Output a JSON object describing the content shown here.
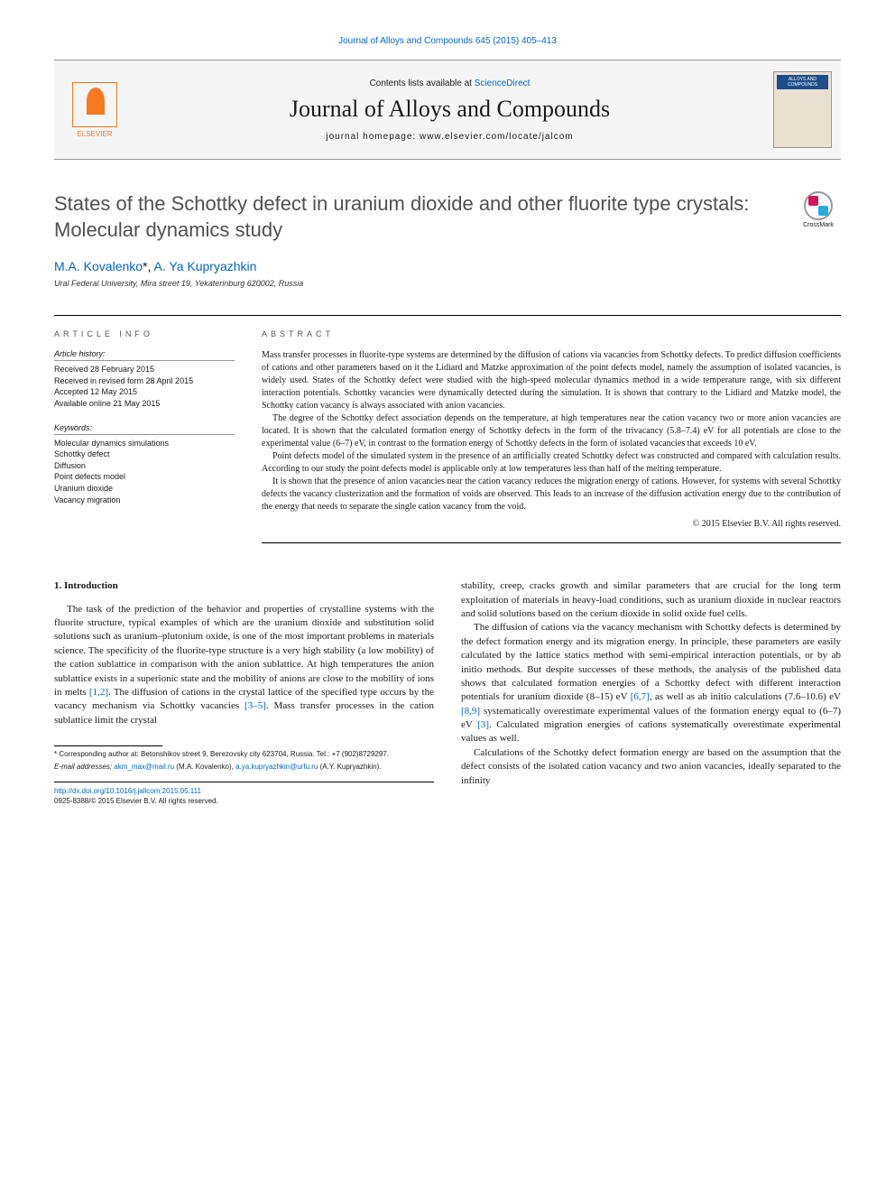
{
  "citation": "Journal of Alloys and Compounds 645 (2015) 405–413",
  "header": {
    "contents_prefix": "Contents lists available at ",
    "contents_link": "ScienceDirect",
    "journal_name": "Journal of Alloys and Compounds",
    "homepage": "journal homepage: www.elsevier.com/locate/jalcom",
    "elsevier_label": "ELSEVIER",
    "cover_text": "ALLOYS AND COMPOUNDS"
  },
  "crossmark_label": "CrossMark",
  "title": "States of the Schottky defect in uranium dioxide and other fluorite type crystals: Molecular dynamics study",
  "authors": {
    "a1_name": "M.A. Kovalenko",
    "a1_mark": "*",
    "sep": ", ",
    "a2_name": "A. Ya Kupryazhkin"
  },
  "affiliation": "Ural Federal University, Mira street 19, Yekaterinburg 620002, Russia",
  "info": {
    "heading": "ARTICLE INFO",
    "history_head": "Article history:",
    "history": "Received 28 February 2015\nReceived in revised form 28 April 2015\nAccepted 12 May 2015\nAvailable online 21 May 2015",
    "keywords_head": "Keywords:",
    "keywords": "Molecular dynamics simulations\nSchottky defect\nDiffusion\nPoint defects model\nUranium dioxide\nVacancy migration"
  },
  "abstract": {
    "heading": "ABSTRACT",
    "p1": "Mass transfer processes in fluorite-type systems are determined by the diffusion of cations via vacancies from Schottky defects. To predict diffusion coefficients of cations and other parameters based on it the Lidiard and Matzke approximation of the point defects model, namely the assumption of isolated vacancies, is widely used. States of the Schottky defect were studied with the high-speed molecular dynamics method in a wide temperature range, with six different interaction potentials. Schottky vacancies were dynamically detected during the simulation. It is shown that contrary to the Lidiard and Matzke model, the Schottky cation vacancy is always associated with anion vacancies.",
    "p2": "The degree of the Schottky defect association depends on the temperature, at high temperatures near the cation vacancy two or more anion vacancies are located. It is shown that the calculated formation energy of Schottky defects in the form of the trivacancy (5.8–7.4) eV for all potentials are close to the experimental value (6–7) eV, in contrast to the formation energy of Schottky defects in the form of isolated vacancies that exceeds 10 eV.",
    "p3": "Point defects model of the simulated system in the presence of an artificially created Schottky defect was constructed and compared with calculation results. According to our study the point defects model is applicable only at low temperatures less than half of the melting temperature.",
    "p4": "It is shown that the presence of anion vacancies near the cation vacancy reduces the migration energy of cations. However, for systems with several Schottky defects the vacancy clusterization and the formation of voids are observed. This leads to an increase of the diffusion activation energy due to the contribution of the energy that needs to separate the single cation vacancy from the void.",
    "copyright": "© 2015 Elsevier B.V. All rights reserved."
  },
  "body": {
    "section1_heading": "1. Introduction",
    "col1_p1a": "The task of the prediction of the behavior and properties of crystalline systems with the fluorite structure, typical examples of which are the uranium dioxide and substitution solid solutions such as uranium–plutonium oxide, is one of the most important problems in materials science. The specificity of the fluorite-type structure is a very high stability (a low mobility) of the cation sublattice in comparison with the anion sublattice. At high temperatures the anion sublattice exists in a superionic state and the mobility of anions are close to the mobility of ions in melts ",
    "ref12": "[1,2]",
    "col1_p1b": ". The diffusion of cations in the crystal lattice of the specified type occurs by the vacancy mechanism via Schottky vacancies ",
    "ref35": "[3–5]",
    "col1_p1c": ". Mass transfer processes in the cation sublattice limit the crystal",
    "col2_p1": "stability, creep, cracks growth and similar parameters that are crucial for the long term exploitation of materials in heavy-load conditions, such as uranium dioxide in nuclear reactors and solid solutions based on the cerium dioxide in solid oxide fuel cells.",
    "col2_p2a": "The diffusion of cations via the vacancy mechanism with Schottky defects is determined by the defect formation energy and its migration energy. In principle, these parameters are easily calculated by the lattice statics method with semi-empirical interaction potentials, or by ab initio methods. But despite successes of these methods, the analysis of the published data shows that calculated formation energies of a Schottky defect with different interaction potentials for uranium dioxide (8–15) eV ",
    "ref67": "[6,7]",
    "col2_p2b": ", as well as ab initio calculations (7.6–10.6) eV ",
    "ref89": "[8,9]",
    "col2_p2c": " systematically overestimate experimental values of the formation energy equal to (6–7) eV ",
    "ref3": "[3]",
    "col2_p2d": ". Calculated migration energies of cations systematically overestimate experimental values as well.",
    "col2_p3": "Calculations of the Schottky defect formation energy are based on the assumption that the defect consists of the isolated cation vacancy and two anion vacancies, ideally separated to the infinity"
  },
  "footnote": {
    "corr": "* Corresponding author at: Betonshikov street 9, Berezovsky city 623704, Russia. Tel.: +7 (902)8729297.",
    "email_label": "E-mail addresses: ",
    "email1": "akm_max@mail.ru",
    "email1_name": " (M.A. Kovalenko), ",
    "email2": "a.ya.kupryazhkin@urfu.ru",
    "email2_name": " (A.Y. Kupryazhkin)."
  },
  "doi": {
    "link": "http://dx.doi.org/10.1016/j.jallcom.2015.05.111",
    "issn": "0925-8388/© 2015 Elsevier B.V. All rights reserved."
  },
  "colors": {
    "link": "#0066cc",
    "elsevier_orange": "#f47920",
    "text": "#1a1a1a"
  }
}
